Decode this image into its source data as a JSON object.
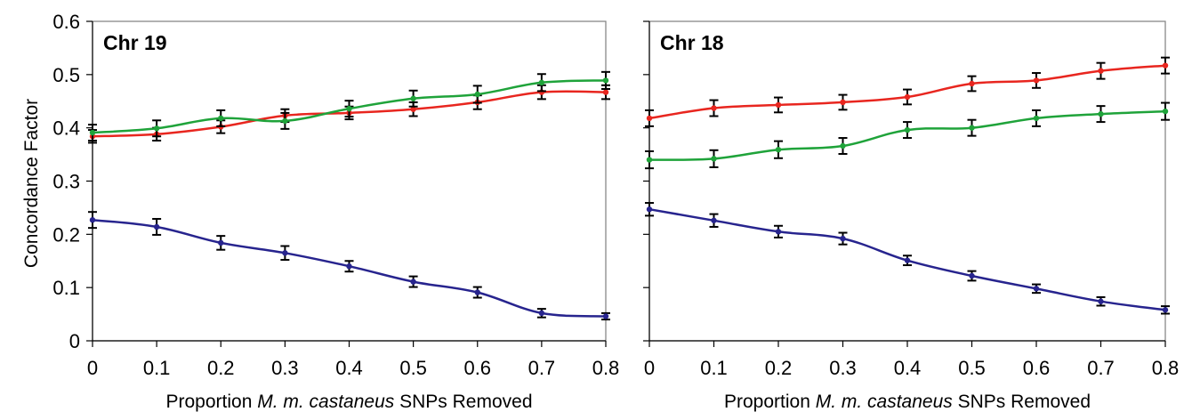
{
  "chart_data": [
    {
      "type": "line",
      "title": "Chr 19",
      "xlabel_parts": [
        "Proportion ",
        "M. m. castaneus",
        " SNPs Removed"
      ],
      "ylabel": "Concordance Factor",
      "x": [
        0,
        0.1,
        0.2,
        0.3,
        0.4,
        0.5,
        0.6,
        0.7,
        0.8
      ],
      "x_tick_labels": [
        "0",
        "0.1",
        "0.2",
        "0.3",
        "0.4",
        "0.5",
        "0.6",
        "0.7",
        "0.8"
      ],
      "y_tick_labels": [
        "0",
        "0.1",
        "0.2",
        "0.3",
        "0.4",
        "0.5",
        "0.6"
      ],
      "xlim": [
        0,
        0.8
      ],
      "ylim": [
        0,
        0.6
      ],
      "grid": false,
      "series": [
        {
          "color": "#e8261f",
          "values": [
            0.384,
            0.388,
            0.402,
            0.423,
            0.428,
            0.435,
            0.448,
            0.467,
            0.467
          ],
          "errors": [
            0.012,
            0.012,
            0.012,
            0.012,
            0.012,
            0.013,
            0.013,
            0.013,
            0.013
          ]
        },
        {
          "color": "#1fa33a",
          "values": [
            0.391,
            0.399,
            0.418,
            0.413,
            0.436,
            0.455,
            0.463,
            0.485,
            0.489
          ],
          "errors": [
            0.015,
            0.015,
            0.015,
            0.015,
            0.015,
            0.015,
            0.016,
            0.016,
            0.016
          ]
        },
        {
          "color": "#27248e",
          "values": [
            0.227,
            0.214,
            0.184,
            0.165,
            0.14,
            0.111,
            0.091,
            0.052,
            0.046
          ],
          "errors": [
            0.015,
            0.015,
            0.013,
            0.013,
            0.01,
            0.01,
            0.01,
            0.008,
            0.006
          ]
        }
      ]
    },
    {
      "type": "line",
      "title": "Chr 18",
      "xlabel_parts": [
        "Proportion ",
        "M. m. castaneus",
        " SNPs Removed"
      ],
      "ylabel": "",
      "x": [
        0,
        0.1,
        0.2,
        0.3,
        0.4,
        0.5,
        0.6,
        0.7,
        0.8
      ],
      "x_tick_labels": [
        "0",
        "0.1",
        "0.2",
        "0.3",
        "0.4",
        "0.5",
        "0.6",
        "0.7",
        "0.8"
      ],
      "y_tick_labels": [],
      "xlim": [
        0,
        0.8
      ],
      "ylim": [
        0,
        0.6
      ],
      "grid": false,
      "series": [
        {
          "color": "#e8261f",
          "values": [
            0.418,
            0.437,
            0.443,
            0.448,
            0.458,
            0.483,
            0.489,
            0.507,
            0.517
          ],
          "errors": [
            0.015,
            0.015,
            0.014,
            0.014,
            0.014,
            0.014,
            0.014,
            0.015,
            0.015
          ]
        },
        {
          "color": "#1fa33a",
          "values": [
            0.34,
            0.342,
            0.359,
            0.366,
            0.396,
            0.4,
            0.418,
            0.426,
            0.431
          ],
          "errors": [
            0.016,
            0.016,
            0.016,
            0.015,
            0.015,
            0.015,
            0.015,
            0.015,
            0.016
          ]
        },
        {
          "color": "#27248e",
          "values": [
            0.247,
            0.226,
            0.205,
            0.192,
            0.151,
            0.122,
            0.098,
            0.074,
            0.058
          ],
          "errors": [
            0.012,
            0.012,
            0.011,
            0.011,
            0.009,
            0.009,
            0.008,
            0.008,
            0.007
          ]
        }
      ]
    }
  ]
}
